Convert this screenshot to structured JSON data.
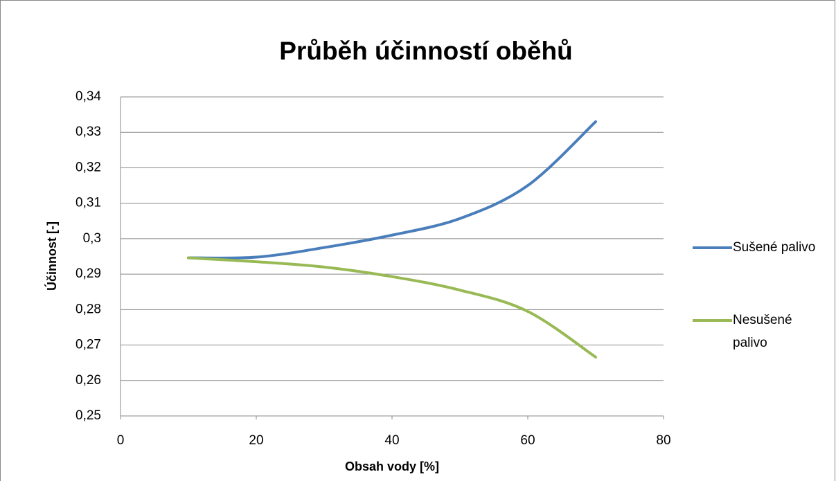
{
  "chart_data": {
    "type": "line",
    "title": "Průběh účinností oběhů",
    "x_label": "Obsah vody [%]",
    "y_label": "Účinnost [-]",
    "x": [
      10,
      20,
      30,
      40,
      50,
      60,
      70
    ],
    "series": [
      {
        "name": "Sušené palivo",
        "color": "#4a7ebb",
        "values": [
          0.2946,
          0.2948,
          0.2975,
          0.301,
          0.3057,
          0.315,
          0.333
        ]
      },
      {
        "name": "Nesušené palivo",
        "color": "#98b954",
        "values": [
          0.2946,
          0.2935,
          0.292,
          0.2893,
          0.2855,
          0.2795,
          0.2666
        ]
      }
    ],
    "xlim": [
      0,
      80
    ],
    "xticks": [
      0,
      20,
      40,
      60,
      80
    ],
    "ylim": [
      0.25,
      0.34
    ],
    "yticks": [
      {
        "value": 0.25,
        "label": "0,25"
      },
      {
        "value": 0.26,
        "label": "0,26"
      },
      {
        "value": 0.27,
        "label": "0,27"
      },
      {
        "value": 0.28,
        "label": "0,28"
      },
      {
        "value": 0.29,
        "label": "0,29"
      },
      {
        "value": 0.3,
        "label": "0,3"
      },
      {
        "value": 0.31,
        "label": "0,31"
      },
      {
        "value": 0.32,
        "label": "0,32"
      },
      {
        "value": 0.33,
        "label": "0,33"
      },
      {
        "value": 0.34,
        "label": "0,34"
      }
    ],
    "grid": true,
    "legend": "right"
  }
}
